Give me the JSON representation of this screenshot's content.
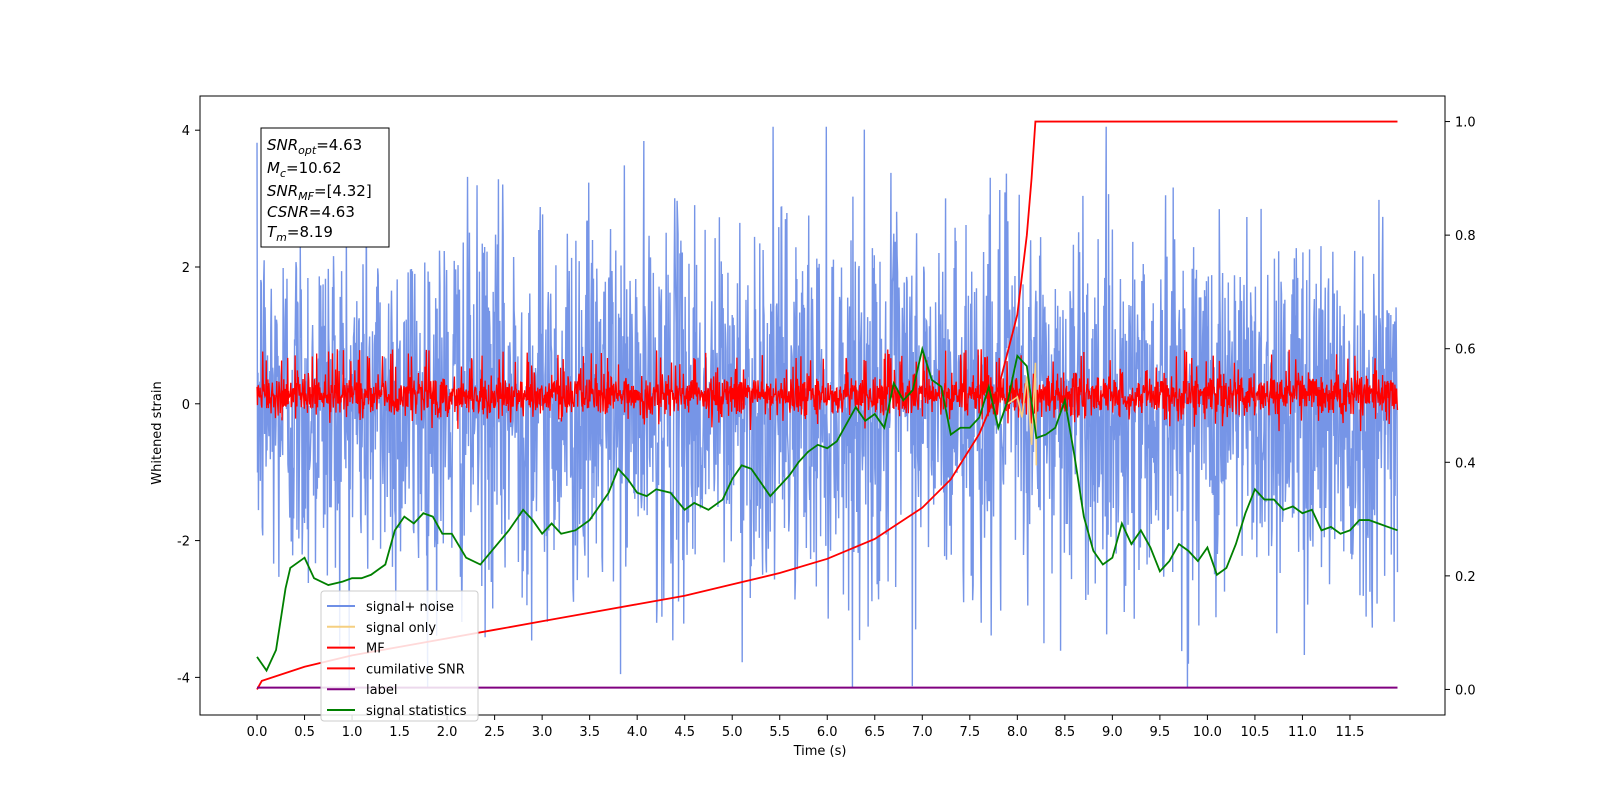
{
  "chart_data": {
    "type": "line",
    "xlabel": "Time (s)",
    "ylabel": "Whitened strain",
    "xlim": [
      -0.6,
      12.5
    ],
    "ylim": [
      -4.55,
      4.5
    ],
    "y2lim": [
      -0.045,
      1.045
    ],
    "x_ticks": [
      "0.0",
      "0.5",
      "1.0",
      "1.5",
      "2.0",
      "2.5",
      "3.0",
      "3.5",
      "4.0",
      "4.5",
      "5.0",
      "5.5",
      "6.0",
      "6.5",
      "7.0",
      "7.5",
      "8.0",
      "8.5",
      "9.0",
      "9.5",
      "10.0",
      "10.5",
      "11.0",
      "11.5"
    ],
    "y_ticks": [
      "-4",
      "-2",
      "0",
      "2",
      "4"
    ],
    "y2_ticks": [
      "0.0",
      "0.2",
      "0.4",
      "0.6",
      "0.8",
      "1.0"
    ],
    "legend": {
      "placement": "lower-left",
      "entries": [
        {
          "name": "signal+ noise",
          "color": "#6f8fe6"
        },
        {
          "name": "signal only",
          "color": "#f5cf80"
        },
        {
          "name": "MF",
          "color": "#ff0000"
        },
        {
          "name": "cumilative SNR",
          "color": "#ff0000"
        },
        {
          "name": "label",
          "color": "#800080"
        },
        {
          "name": "signal statistics",
          "color": "#008000"
        }
      ]
    },
    "annotation": {
      "snr_opt": {
        "base": "SNR",
        "sub": "opt",
        "value": "=4.63"
      },
      "mc": {
        "base": "M",
        "sub": "c",
        "value": "=10.62"
      },
      "snr_mf": {
        "base": "SNR",
        "sub": "MF",
        "value": "=[4.32]"
      },
      "csnr": {
        "base": "CSNR",
        "value": "=4.63"
      },
      "tm": {
        "base": "T",
        "sub": "m",
        "value": "=8.19"
      }
    },
    "noise_band": {
      "x_start": 0.0,
      "x_end": 12.0,
      "typical_low": -2.2,
      "typical_high": 2.2,
      "extreme_low": -4.15,
      "extreme_high": 4.05
    },
    "mf_band": {
      "x_start": 0.0,
      "x_end": 12.0,
      "typical_low": -0.35,
      "typical_high": 0.6,
      "max": 0.8
    },
    "signal_only": {
      "x": [
        7.9,
        8.0,
        8.05,
        8.1,
        8.15,
        8.19,
        8.2
      ],
      "y": [
        0.0,
        0.1,
        -0.2,
        0.4,
        -0.6,
        0.6,
        -0.9
      ]
    },
    "label_series": {
      "x": [
        0.0,
        12.0
      ],
      "y": [
        -4.15,
        -4.15
      ]
    },
    "cumulative_snr": {
      "x": [
        0.0,
        0.05,
        0.5,
        1.0,
        1.5,
        2.0,
        2.5,
        3.0,
        3.5,
        4.0,
        4.5,
        5.0,
        5.5,
        6.0,
        6.5,
        7.0,
        7.3,
        7.6,
        7.8,
        8.0,
        8.1,
        8.15,
        8.19,
        12.0
      ],
      "y": [
        0.0,
        0.015,
        0.04,
        0.06,
        0.075,
        0.09,
        0.105,
        0.12,
        0.135,
        0.15,
        0.165,
        0.185,
        0.205,
        0.23,
        0.265,
        0.32,
        0.37,
        0.45,
        0.53,
        0.66,
        0.8,
        0.9,
        1.0,
        1.0
      ]
    },
    "signal_statistics": {
      "x": [
        0.0,
        0.1,
        0.2,
        0.3,
        0.35,
        0.5,
        0.6,
        0.75,
        0.9,
        1.0,
        1.1,
        1.2,
        1.35,
        1.45,
        1.55,
        1.65,
        1.75,
        1.85,
        1.95,
        2.05,
        2.2,
        2.35,
        2.5,
        2.65,
        2.8,
        2.9,
        3.0,
        3.1,
        3.2,
        3.35,
        3.5,
        3.6,
        3.7,
        3.8,
        3.9,
        4.0,
        4.1,
        4.2,
        4.35,
        4.5,
        4.6,
        4.75,
        4.9,
        5.0,
        5.1,
        5.2,
        5.3,
        5.4,
        5.5,
        5.6,
        5.7,
        5.8,
        5.9,
        6.0,
        6.1,
        6.2,
        6.3,
        6.4,
        6.5,
        6.6,
        6.7,
        6.8,
        6.9,
        7.0,
        7.1,
        7.2,
        7.3,
        7.4,
        7.5,
        7.6,
        7.7,
        7.8,
        7.9,
        8.0,
        8.1,
        8.2,
        8.3,
        8.4,
        8.5,
        8.6,
        8.7,
        8.8,
        8.9,
        9.0,
        9.1,
        9.2,
        9.3,
        9.4,
        9.5,
        9.6,
        9.7,
        9.8,
        9.9,
        10.0,
        10.1,
        10.2,
        10.3,
        10.4,
        10.5,
        10.6,
        10.7,
        10.8,
        10.9,
        11.0,
        11.1,
        11.2,
        11.3,
        11.4,
        11.5,
        11.6,
        11.7,
        11.8,
        11.9,
        12.0
      ],
      "y": [
        -3.7,
        -3.9,
        -3.6,
        -2.7,
        -2.4,
        -2.25,
        -2.55,
        -2.65,
        -2.6,
        -2.55,
        -2.55,
        -2.5,
        -2.35,
        -1.85,
        -1.65,
        -1.75,
        -1.6,
        -1.65,
        -1.9,
        -1.9,
        -2.25,
        -2.35,
        -2.1,
        -1.85,
        -1.55,
        -1.7,
        -1.9,
        -1.75,
        -1.9,
        -1.85,
        -1.7,
        -1.5,
        -1.3,
        -0.95,
        -1.1,
        -1.3,
        -1.35,
        -1.25,
        -1.3,
        -1.55,
        -1.45,
        -1.55,
        -1.4,
        -1.1,
        -0.9,
        -0.95,
        -1.15,
        -1.35,
        -1.2,
        -1.05,
        -0.85,
        -0.7,
        -0.6,
        -0.65,
        -0.55,
        -0.3,
        -0.05,
        -0.25,
        -0.15,
        -0.35,
        0.3,
        0.05,
        0.2,
        0.8,
        0.35,
        0.25,
        -0.45,
        -0.35,
        -0.35,
        -0.2,
        0.25,
        -0.35,
        0.05,
        0.7,
        0.55,
        -0.5,
        -0.45,
        -0.35,
        0.05,
        -0.75,
        -1.65,
        -2.15,
        -2.35,
        -2.25,
        -1.75,
        -2.05,
        -1.85,
        -2.1,
        -2.45,
        -2.3,
        -2.05,
        -2.15,
        -2.3,
        -2.1,
        -2.5,
        -2.4,
        -2.05,
        -1.6,
        -1.25,
        -1.4,
        -1.4,
        -1.55,
        -1.5,
        -1.6,
        -1.55,
        -1.85,
        -1.8,
        -1.9,
        -1.85,
        -1.7,
        -1.7,
        -1.75,
        -1.8,
        -1.85
      ]
    }
  }
}
